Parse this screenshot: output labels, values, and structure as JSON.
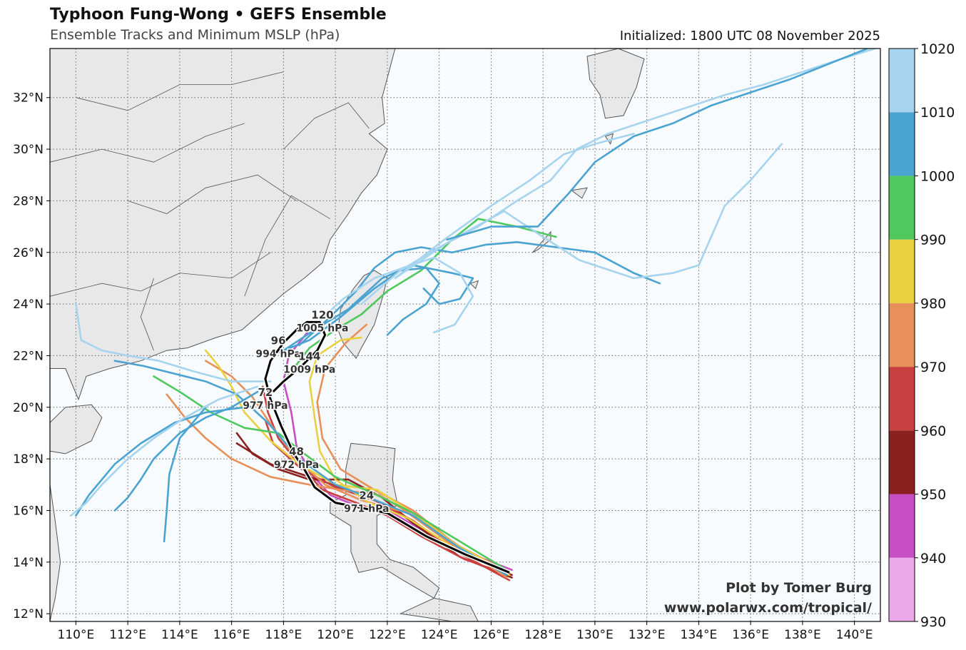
{
  "header": {
    "title": "Typhoon Fung-Wong • GEFS Ensemble",
    "subtitle": "Ensemble Tracks and Minimum MSLP (hPa)",
    "initialized": "Initialized: 1800 UTC 08 November 2025"
  },
  "credit": {
    "line1": "Plot by Tomer Burg",
    "line2": "www.polarwx.com/tropical/"
  },
  "axes": {
    "lon_range": [
      109,
      141
    ],
    "lat_range": [
      11.7,
      33.9
    ],
    "lon_ticks": [
      110,
      112,
      114,
      116,
      118,
      120,
      122,
      124,
      126,
      128,
      130,
      132,
      134,
      136,
      138,
      140
    ],
    "lat_ticks": [
      12,
      14,
      16,
      18,
      20,
      22,
      24,
      26,
      28,
      30,
      32
    ],
    "lon_labels": [
      "110°E",
      "112°E",
      "114°E",
      "116°E",
      "118°E",
      "120°E",
      "122°E",
      "124°E",
      "126°E",
      "128°E",
      "130°E",
      "132°E",
      "134°E",
      "136°E",
      "138°E",
      "140°E"
    ],
    "lat_labels": [
      "12°N",
      "14°N",
      "16°N",
      "18°N",
      "20°N",
      "22°N",
      "24°N",
      "26°N",
      "28°N",
      "30°N",
      "32°N"
    ]
  },
  "colorbar": {
    "levels": [
      930,
      940,
      950,
      960,
      970,
      980,
      990,
      1000,
      1010,
      1020
    ],
    "labels": [
      "930",
      "940",
      "950",
      "960",
      "970",
      "980",
      "990",
      "1000",
      "1010",
      "1020"
    ],
    "colors": [
      "#eeaae8",
      "#c64fc6",
      "#8b2020",
      "#c94040",
      "#e8905a",
      "#e8d040",
      "#50c860",
      "#4aa3d0",
      "#a6d4ee"
    ]
  },
  "colors": {
    "land": "#e8e8e8",
    "ocean": "#f7fbfd",
    "mean_track": "#000000"
  },
  "mean_track": {
    "points": [
      [
        126.7,
        13.6
      ],
      [
        125.0,
        14.3
      ],
      [
        123.5,
        15.0
      ],
      [
        122.0,
        15.9
      ],
      [
        121.0,
        16.1
      ],
      [
        120.0,
        16.3
      ],
      [
        119.2,
        16.9
      ],
      [
        118.8,
        17.6
      ],
      [
        118.4,
        18.2
      ],
      [
        117.9,
        19.3
      ],
      [
        117.5,
        20.3
      ],
      [
        117.3,
        21.1
      ],
      [
        117.5,
        21.8
      ],
      [
        118.0,
        22.5
      ],
      [
        118.5,
        23.0
      ],
      [
        118.9,
        23.3
      ],
      [
        119.4,
        23.3
      ],
      [
        119.6,
        22.8
      ],
      [
        119.3,
        22.2
      ],
      [
        118.6,
        21.5
      ],
      [
        118.0,
        21.0
      ],
      [
        117.6,
        20.6
      ]
    ],
    "labels": [
      {
        "hour": "24",
        "mslp": "971 hPa",
        "lon": 121.2,
        "lat": 16.3
      },
      {
        "hour": "48",
        "mslp": "972 hPa",
        "lon": 118.5,
        "lat": 18.0
      },
      {
        "hour": "72",
        "mslp": "977 hPa",
        "lon": 117.3,
        "lat": 20.3
      },
      {
        "hour": "96",
        "mslp": "994 hPa",
        "lon": 117.8,
        "lat": 22.3
      },
      {
        "hour": "120",
        "mslp": "1005 hPa",
        "lon": 119.5,
        "lat": 23.3
      },
      {
        "hour": "144",
        "mslp": "1009 hPa",
        "lon": 119.0,
        "lat": 21.7
      }
    ]
  },
  "ensemble_tracks": [
    {
      "mslp": 945,
      "points": [
        [
          126.8,
          13.7
        ],
        [
          125.0,
          14.4
        ],
        [
          123.6,
          15.1
        ],
        [
          122.2,
          15.9
        ],
        [
          121.0,
          16.1
        ],
        [
          119.8,
          16.6
        ],
        [
          119.0,
          17.5
        ],
        [
          118.5,
          18.5
        ],
        [
          118.3,
          19.8
        ],
        [
          118.0,
          21.0
        ],
        [
          118.2,
          22.0
        ],
        [
          119.0,
          23.0
        ]
      ]
    },
    {
      "mslp": 955,
      "points": [
        [
          126.8,
          13.5
        ],
        [
          125.0,
          14.3
        ],
        [
          123.5,
          15.2
        ],
        [
          122.0,
          16.2
        ],
        [
          120.5,
          16.8
        ],
        [
          119.0,
          17.3
        ],
        [
          117.5,
          17.8
        ],
        [
          116.2,
          18.6
        ]
      ]
    },
    {
      "mslp": 955,
      "points": [
        [
          126.8,
          13.4
        ],
        [
          124.8,
          14.2
        ],
        [
          123.0,
          15.5
        ],
        [
          121.8,
          16.5
        ],
        [
          120.5,
          17.2
        ],
        [
          119.0,
          17.2
        ],
        [
          117.8,
          17.6
        ],
        [
          116.8,
          18.2
        ],
        [
          116.2,
          19.0
        ]
      ]
    },
    {
      "mslp": 965,
      "points": [
        [
          126.7,
          13.5
        ],
        [
          125.0,
          14.1
        ],
        [
          123.3,
          15.0
        ],
        [
          122.0,
          15.8
        ],
        [
          120.8,
          16.3
        ],
        [
          119.5,
          16.8
        ],
        [
          118.6,
          17.8
        ],
        [
          117.8,
          18.8
        ],
        [
          117.4,
          19.8
        ],
        [
          117.2,
          20.8
        ]
      ]
    },
    {
      "mslp": 965,
      "points": [
        [
          126.7,
          13.3
        ],
        [
          124.5,
          14.5
        ],
        [
          123.0,
          15.6
        ],
        [
          121.5,
          16.4
        ],
        [
          120.0,
          16.9
        ],
        [
          118.7,
          17.6
        ],
        [
          117.6,
          18.6
        ],
        [
          117.3,
          19.5
        ]
      ]
    },
    {
      "mslp": 975,
      "points": [
        [
          126.7,
          13.6
        ],
        [
          124.8,
          14.6
        ],
        [
          123.0,
          15.8
        ],
        [
          121.7,
          16.6
        ],
        [
          120.2,
          16.8
        ],
        [
          119.0,
          17.0
        ],
        [
          117.5,
          17.3
        ],
        [
          116.0,
          18.0
        ],
        [
          115.0,
          18.8
        ],
        [
          114.2,
          19.6
        ],
        [
          113.5,
          20.5
        ]
      ]
    },
    {
      "mslp": 975,
      "points": [
        [
          126.6,
          13.4
        ],
        [
          124.5,
          14.8
        ],
        [
          123.0,
          16.0
        ],
        [
          121.5,
          16.8
        ],
        [
          120.2,
          17.6
        ],
        [
          119.5,
          18.8
        ],
        [
          119.3,
          20.2
        ],
        [
          119.6,
          21.5
        ],
        [
          120.4,
          22.5
        ],
        [
          121.2,
          23.2
        ]
      ]
    },
    {
      "mslp": 975,
      "points": [
        [
          126.7,
          13.5
        ],
        [
          124.6,
          14.6
        ],
        [
          122.8,
          15.9
        ],
        [
          121.0,
          16.4
        ],
        [
          119.6,
          17.0
        ],
        [
          118.5,
          18.0
        ],
        [
          117.6,
          19.2
        ],
        [
          116.8,
          20.4
        ],
        [
          116.0,
          21.2
        ],
        [
          115.0,
          21.8
        ]
      ]
    },
    {
      "mslp": 985,
      "points": [
        [
          126.7,
          13.5
        ],
        [
          124.5,
          14.6
        ],
        [
          122.8,
          15.7
        ],
        [
          121.3,
          16.3
        ],
        [
          120.0,
          17.2
        ],
        [
          119.4,
          18.3
        ],
        [
          119.2,
          19.6
        ],
        [
          119.0,
          21.0
        ],
        [
          119.3,
          22.0
        ],
        [
          120.2,
          22.6
        ],
        [
          121.0,
          22.7
        ]
      ]
    },
    {
      "mslp": 985,
      "points": [
        [
          126.6,
          13.6
        ],
        [
          124.6,
          14.7
        ],
        [
          123.0,
          15.9
        ],
        [
          121.6,
          16.8
        ],
        [
          120.0,
          17.0
        ],
        [
          118.6,
          17.8
        ],
        [
          117.5,
          18.7
        ],
        [
          116.5,
          19.8
        ],
        [
          116.0,
          20.8
        ],
        [
          115.5,
          21.6
        ],
        [
          115.0,
          22.2
        ]
      ]
    },
    {
      "mslp": 995,
      "points": [
        [
          126.6,
          13.7
        ],
        [
          124.8,
          14.8
        ],
        [
          123.0,
          15.9
        ],
        [
          121.6,
          16.6
        ],
        [
          120.0,
          17.3
        ],
        [
          118.8,
          18.2
        ],
        [
          117.8,
          19.0
        ],
        [
          116.5,
          19.2
        ],
        [
          115.2,
          19.8
        ],
        [
          114.0,
          20.6
        ],
        [
          113.0,
          21.2
        ]
      ]
    },
    {
      "mslp": 995,
      "points": [
        [
          118.0,
          21.0
        ],
        [
          119.0,
          22.3
        ],
        [
          120.0,
          23.0
        ],
        [
          121.0,
          23.6
        ],
        [
          122.0,
          24.5
        ],
        [
          123.3,
          25.3
        ],
        [
          124.5,
          26.5
        ],
        [
          125.5,
          27.3
        ],
        [
          127.0,
          27.0
        ],
        [
          128.5,
          26.6
        ]
      ]
    },
    {
      "mslp": 1005,
      "points": [
        [
          117.0,
          20.6
        ],
        [
          116.0,
          20.0
        ],
        [
          115.0,
          19.6
        ],
        [
          114.0,
          19.0
        ],
        [
          113.5,
          18.5
        ],
        [
          113.0,
          18.0
        ],
        [
          112.5,
          17.2
        ],
        [
          112.0,
          16.5
        ],
        [
          111.5,
          16.0
        ]
      ]
    },
    {
      "mslp": 1005,
      "points": [
        [
          118.6,
          22.4
        ],
        [
          119.8,
          23.5
        ],
        [
          120.8,
          24.5
        ],
        [
          121.5,
          25.4
        ],
        [
          122.3,
          26.0
        ],
        [
          123.3,
          26.2
        ],
        [
          124.5,
          26.0
        ],
        [
          125.8,
          26.3
        ],
        [
          127.0,
          26.4
        ],
        [
          128.5,
          26.2
        ],
        [
          130.0,
          26.0
        ],
        [
          131.5,
          25.2
        ],
        [
          132.5,
          24.8
        ]
      ]
    },
    {
      "mslp": 1005,
      "points": [
        [
          118.0,
          22.2
        ],
        [
          119.2,
          23.0
        ],
        [
          120.5,
          23.8
        ],
        [
          121.8,
          25.0
        ],
        [
          123.0,
          25.5
        ],
        [
          124.5,
          25.2
        ],
        [
          125.3,
          25.0
        ],
        [
          124.8,
          24.2
        ],
        [
          124.0,
          24.0
        ],
        [
          123.4,
          24.6
        ]
      ]
    },
    {
      "mslp": 1005,
      "points": [
        [
          116.5,
          20.0
        ],
        [
          115.0,
          19.8
        ],
        [
          113.8,
          19.4
        ],
        [
          112.5,
          18.6
        ],
        [
          111.5,
          17.8
        ],
        [
          110.5,
          16.6
        ],
        [
          110.0,
          15.8
        ]
      ]
    },
    {
      "mslp": 1005,
      "points": [
        [
          126.6,
          13.5
        ],
        [
          124.7,
          14.6
        ],
        [
          123.0,
          15.8
        ],
        [
          121.3,
          16.5
        ],
        [
          120.0,
          17.0
        ],
        [
          118.6,
          18.0
        ],
        [
          117.4,
          19.4
        ],
        [
          116.2,
          20.5
        ],
        [
          115.0,
          21.0
        ],
        [
          113.8,
          21.3
        ],
        [
          112.6,
          21.6
        ],
        [
          111.5,
          21.8
        ]
      ]
    },
    {
      "mslp": 1005,
      "points": [
        [
          115.0,
          20.0
        ],
        [
          114.0,
          18.8
        ],
        [
          113.6,
          17.4
        ],
        [
          113.5,
          16.0
        ],
        [
          113.4,
          14.8
        ]
      ]
    },
    {
      "mslp": 1005,
      "points": [
        [
          117.5,
          22.0
        ],
        [
          119.0,
          22.6
        ],
        [
          120.2,
          23.5
        ],
        [
          121.5,
          24.6
        ],
        [
          122.5,
          25.3
        ],
        [
          123.5,
          25.4
        ],
        [
          124.0,
          24.8
        ],
        [
          123.5,
          24.0
        ],
        [
          122.6,
          23.4
        ],
        [
          122.0,
          22.8
        ]
      ]
    },
    {
      "mslp": 1015,
      "points": [
        [
          117.0,
          20.8
        ],
        [
          115.5,
          20.3
        ],
        [
          114.2,
          19.6
        ],
        [
          113.0,
          18.8
        ],
        [
          112.0,
          18.0
        ],
        [
          111.0,
          17.0
        ],
        [
          110.4,
          16.3
        ],
        [
          109.8,
          15.8
        ]
      ]
    },
    {
      "mslp": 1015,
      "points": [
        [
          119.0,
          23.0
        ],
        [
          120.3,
          24.2
        ],
        [
          121.5,
          25.0
        ],
        [
          122.6,
          25.4
        ],
        [
          123.8,
          25.8
        ],
        [
          124.8,
          25.2
        ],
        [
          125.3,
          24.3
        ],
        [
          124.6,
          23.2
        ],
        [
          123.8,
          22.9
        ]
      ]
    },
    {
      "mslp": 1015,
      "points": [
        [
          121.0,
          24.0
        ],
        [
          122.5,
          25.3
        ],
        [
          124.0,
          26.2
        ],
        [
          125.5,
          27.0
        ],
        [
          127.0,
          28.0
        ],
        [
          128.3,
          28.8
        ],
        [
          129.3,
          30.0
        ],
        [
          130.5,
          30.6
        ],
        [
          132.0,
          31.1
        ],
        [
          133.5,
          31.6
        ],
        [
          135.0,
          32.1
        ],
        [
          136.5,
          32.5
        ],
        [
          138.0,
          33.0
        ],
        [
          139.5,
          33.5
        ],
        [
          140.8,
          33.9
        ]
      ]
    },
    {
      "mslp": 1015,
      "points": [
        [
          122.3,
          25.0
        ],
        [
          124.2,
          26.5
        ],
        [
          126.0,
          27.8
        ],
        [
          127.5,
          28.8
        ],
        [
          128.8,
          29.8
        ],
        [
          130.0,
          30.2
        ],
        [
          131.5,
          30.6
        ]
      ]
    },
    {
      "mslp": 1015,
      "points": [
        [
          122.3,
          25.0
        ],
        [
          124.5,
          26.5
        ],
        [
          126.5,
          27.6
        ],
        [
          128.0,
          26.6
        ],
        [
          129.4,
          25.7
        ],
        [
          131.5,
          25.0
        ],
        [
          133.0,
          25.2
        ],
        [
          134.0,
          25.5
        ],
        [
          135.0,
          27.8
        ],
        [
          136.0,
          28.8
        ],
        [
          137.2,
          30.2
        ]
      ]
    },
    {
      "mslp": 1005,
      "points": [
        [
          124.3,
          26.5
        ],
        [
          126.0,
          27.0
        ],
        [
          127.8,
          27.0
        ],
        [
          129.0,
          28.3
        ],
        [
          130.0,
          29.5
        ],
        [
          131.5,
          30.5
        ],
        [
          133.0,
          31.0
        ],
        [
          134.5,
          31.7
        ],
        [
          136.0,
          32.2
        ],
        [
          137.5,
          32.7
        ],
        [
          139.0,
          33.3
        ],
        [
          140.5,
          33.9
        ]
      ]
    },
    {
      "mslp": 1015,
      "points": [
        [
          117.5,
          21.0
        ],
        [
          116.0,
          21.0
        ],
        [
          114.5,
          21.4
        ],
        [
          113.2,
          21.8
        ],
        [
          112.0,
          22.0
        ],
        [
          111.0,
          22.2
        ],
        [
          110.2,
          22.6
        ],
        [
          110.0,
          24.0
        ]
      ]
    }
  ]
}
